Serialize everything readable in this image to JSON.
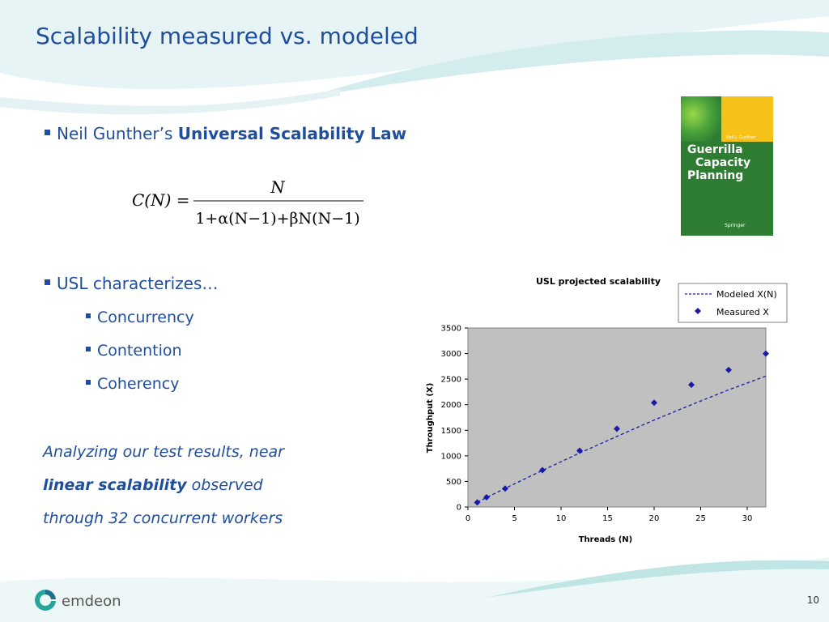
{
  "slide": {
    "title": "Scalability measured vs. modeled",
    "bullet1_prefix": "Neil Gunther’s",
    "bullet1_bold": "Universal Scalability Law",
    "formula": {
      "lhs": "C(N) =",
      "numerator": "N",
      "denominator": "1+α(N−1)+βN(N−1)"
    },
    "bullet2": "USL characterizes…",
    "sub_items": [
      "Concurrency",
      "Contention",
      "Coherency"
    ],
    "note": {
      "line1": "Analyzing our test results, near",
      "bold": "linear scalability",
      "line2_rest": "observed",
      "line3": "through 32 concurrent workers"
    },
    "book": {
      "author": "Neil J. Gunther",
      "title_lines": [
        "Guerrilla",
        "Capacity",
        "Planning"
      ],
      "publisher": "Springer"
    },
    "logo_text": "emdeon",
    "page_number": "10",
    "colors": {
      "accent": "#1f4e9e",
      "plot_bg": "#c0c0c0",
      "series": "#1a1aa6",
      "wave": "#9fd8d8"
    }
  },
  "chart_data": {
    "type": "scatter",
    "title": "USL projected scalability",
    "xlabel": "Threads (N)",
    "ylabel": "Throughput (X)",
    "xlim": [
      0,
      32
    ],
    "ylim": [
      0,
      3500
    ],
    "xticks": [
      0,
      5,
      10,
      15,
      20,
      25,
      30
    ],
    "yticks": [
      0,
      500,
      1000,
      1500,
      2000,
      2500,
      3000,
      3500
    ],
    "legend_position": "top-right",
    "grid": false,
    "series": [
      {
        "name": "Modeled X(N)",
        "style": "dashed-line",
        "x": [
          1,
          2,
          4,
          8,
          12,
          16,
          20,
          24,
          28,
          32
        ],
        "y": [
          95,
          185,
          365,
          715,
          1055,
          1380,
          1700,
          2000,
          2290,
          2560
        ]
      },
      {
        "name": "Measured X",
        "style": "diamond-markers",
        "x": [
          1,
          2,
          4,
          8,
          12,
          16,
          20,
          24,
          28,
          32
        ],
        "y": [
          90,
          190,
          360,
          720,
          1100,
          1530,
          2040,
          2390,
          2680,
          3000
        ]
      }
    ]
  }
}
